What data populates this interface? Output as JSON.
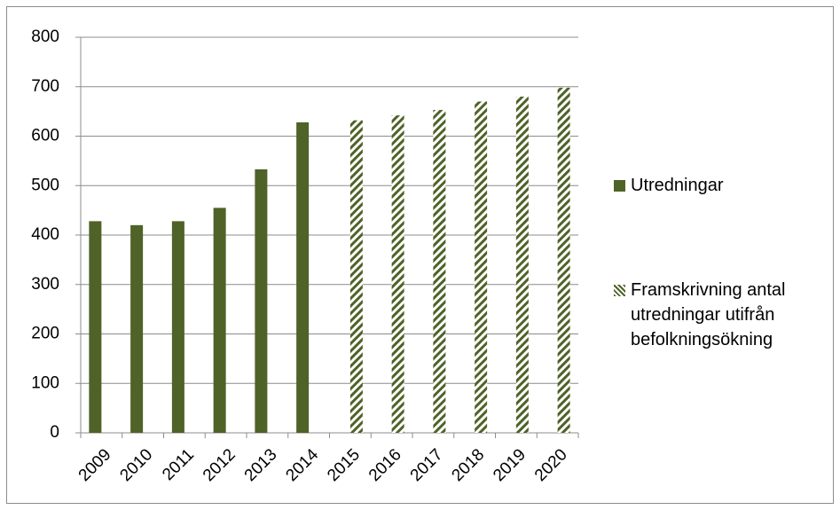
{
  "chart_data": {
    "type": "bar",
    "categories": [
      "2009",
      "2010",
      "2011",
      "2012",
      "2013",
      "2014",
      "2015",
      "2016",
      "2017",
      "2018",
      "2019",
      "2020"
    ],
    "series": [
      {
        "name": "Utredningar",
        "color": "#4f6228",
        "pattern": "solid",
        "values": [
          428,
          420,
          428,
          455,
          533,
          628,
          null,
          null,
          null,
          null,
          null,
          null
        ]
      },
      {
        "name": "Framskrivning antal utredningar utifrån befolkningsökning",
        "color": "#4f6228",
        "pattern": "hatch",
        "values": [
          null,
          null,
          null,
          null,
          null,
          null,
          632,
          642,
          653,
          670,
          680,
          698
        ]
      }
    ],
    "ylim": [
      0,
      800
    ],
    "yticks": [
      0,
      100,
      200,
      300,
      400,
      500,
      600,
      700,
      800
    ],
    "grid": true,
    "legend": "right"
  }
}
